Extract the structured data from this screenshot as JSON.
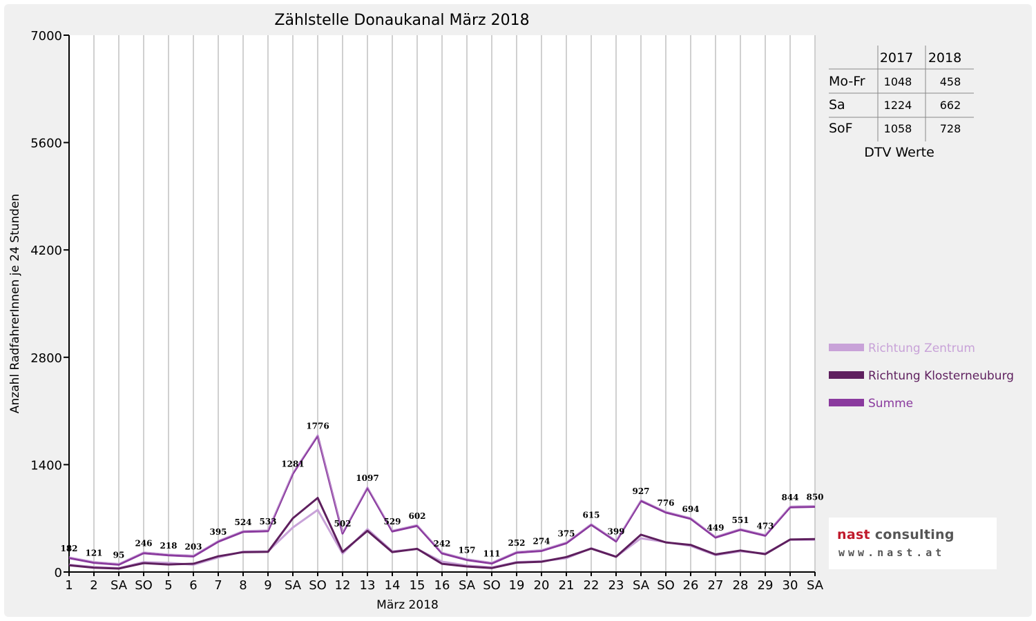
{
  "chart_data": {
    "type": "line",
    "title": "Zählstelle Donaukanal März 2018",
    "xlabel": "März 2018",
    "ylabel": "Anzahl RadfahrerInnen je 24 Stunden",
    "ylim": [
      0,
      7000
    ],
    "yticks": [
      "0",
      "1400",
      "2800",
      "4200",
      "5600",
      "7000"
    ],
    "grid": true,
    "legend_position": "right",
    "categories": [
      "1",
      "2",
      "SA",
      "SO",
      "5",
      "6",
      "7",
      "8",
      "9",
      "SA",
      "SO",
      "12",
      "13",
      "14",
      "15",
      "16",
      "SA",
      "SO",
      "19",
      "20",
      "21",
      "22",
      "23",
      "SA",
      "SO",
      "26",
      "27",
      "28",
      "29",
      "30",
      "SA"
    ],
    "weekend_color": "#ff0000",
    "series": [
      {
        "name": "Richtung Zentrum",
        "color": "#c8a2d8",
        "values": [
          95,
          65,
          50,
          130,
          120,
          95,
          190,
          265,
          270,
          580,
          810,
          240,
          560,
          270,
          300,
          135,
          85,
          60,
          130,
          140,
          180,
          310,
          200,
          440,
          390,
          340,
          220,
          270,
          240,
          420,
          420
        ]
      },
      {
        "name": "Richtung Klosterneuburg",
        "color": "#5e1f5e",
        "values": [
          87,
          56,
          45,
          116,
          98,
          108,
          205,
          259,
          263,
          701,
          966,
          262,
          537,
          259,
          302,
          107,
          72,
          51,
          122,
          134,
          195,
          305,
          199,
          487,
          386,
          354,
          229,
          281,
          233,
          424,
          430
        ]
      },
      {
        "name": "Summe",
        "color": "#8a3a9e",
        "values": [
          182,
          121,
          95,
          246,
          218,
          203,
          395,
          524,
          533,
          1281,
          1776,
          502,
          1097,
          529,
          602,
          242,
          157,
          111,
          252,
          274,
          375,
          615,
          399,
          927,
          776,
          694,
          449,
          551,
          473,
          844,
          850
        ]
      }
    ],
    "data_labels": [
      "182",
      "121",
      "95",
      "246",
      "218",
      "203",
      "395",
      "524",
      "533",
      "1281",
      "1776",
      "502",
      "1097",
      "529",
      "602",
      "242",
      "157",
      "111",
      "252",
      "274",
      "375",
      "615",
      "399",
      "927",
      "776",
      "694",
      "449",
      "551",
      "473",
      "844",
      "850"
    ]
  },
  "dtv_table": {
    "columns": [
      "",
      "2017",
      "2018"
    ],
    "rows": [
      {
        "label": "Mo-Fr",
        "v2017": "1048",
        "v2018": "458"
      },
      {
        "label": "Sa",
        "v2017": "1224",
        "v2018": "662"
      },
      {
        "label": "SoF",
        "v2017": "1058",
        "v2018": "728"
      }
    ],
    "caption": "DTV Werte"
  },
  "logo": {
    "word1": "nast",
    "word2": " consulting",
    "url": "www.nast.at"
  }
}
